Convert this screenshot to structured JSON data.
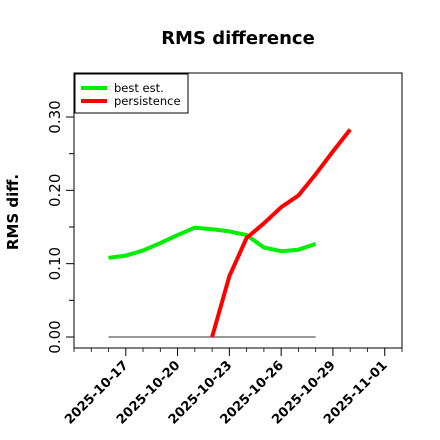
{
  "chart_data": {
    "type": "line",
    "title": "RMS difference",
    "xlabel": "",
    "ylabel": "RMS diff.",
    "x_axis": {
      "type": "date",
      "range": [
        "2025-10-14",
        "2025-11-02"
      ],
      "ticks": [
        "2025-10-17",
        "2025-10-20",
        "2025-10-23",
        "2025-10-26",
        "2025-10-29",
        "2025-11-01"
      ]
    },
    "y_axis": {
      "range": [
        -0.015,
        0.36
      ],
      "ticks": [
        0.0,
        0.1,
        0.2,
        0.3
      ],
      "tick_labels": [
        "0.00",
        "0.10",
        "0.20",
        "0.30"
      ]
    },
    "grid": false,
    "legend": {
      "position": "top-left",
      "entries": [
        "best est.",
        "persistence"
      ]
    },
    "series": [
      {
        "name": "best est.",
        "color": "#00ee00",
        "points": [
          [
            "2025-10-16",
            0.108
          ],
          [
            "2025-10-17",
            0.111
          ],
          [
            "2025-10-18",
            0.118
          ],
          [
            "2025-10-19",
            0.128
          ],
          [
            "2025-10-20",
            0.139
          ],
          [
            "2025-10-21",
            0.149
          ],
          [
            "2025-10-22",
            0.147
          ],
          [
            "2025-10-23",
            0.144
          ],
          [
            "2025-10-24",
            0.139
          ],
          [
            "2025-10-25",
            0.122
          ],
          [
            "2025-10-26",
            0.117
          ],
          [
            "2025-10-27",
            0.119
          ],
          [
            "2025-10-28",
            0.127
          ]
        ]
      },
      {
        "name": "persistence",
        "color": "#ff0000",
        "points": [
          [
            "2025-10-22",
            0.0
          ],
          [
            "2025-10-23",
            0.083
          ],
          [
            "2025-10-24",
            0.135
          ],
          [
            "2025-10-25",
            0.155
          ],
          [
            "2025-10-26",
            0.177
          ],
          [
            "2025-10-27",
            0.193
          ],
          [
            "2025-10-28",
            0.222
          ],
          [
            "2025-10-29",
            0.253
          ],
          [
            "2025-10-30",
            0.283
          ]
        ]
      }
    ],
    "reference_line": {
      "y": 0.0,
      "from": "2025-10-16",
      "to": "2025-10-28",
      "color": "#777777"
    }
  }
}
